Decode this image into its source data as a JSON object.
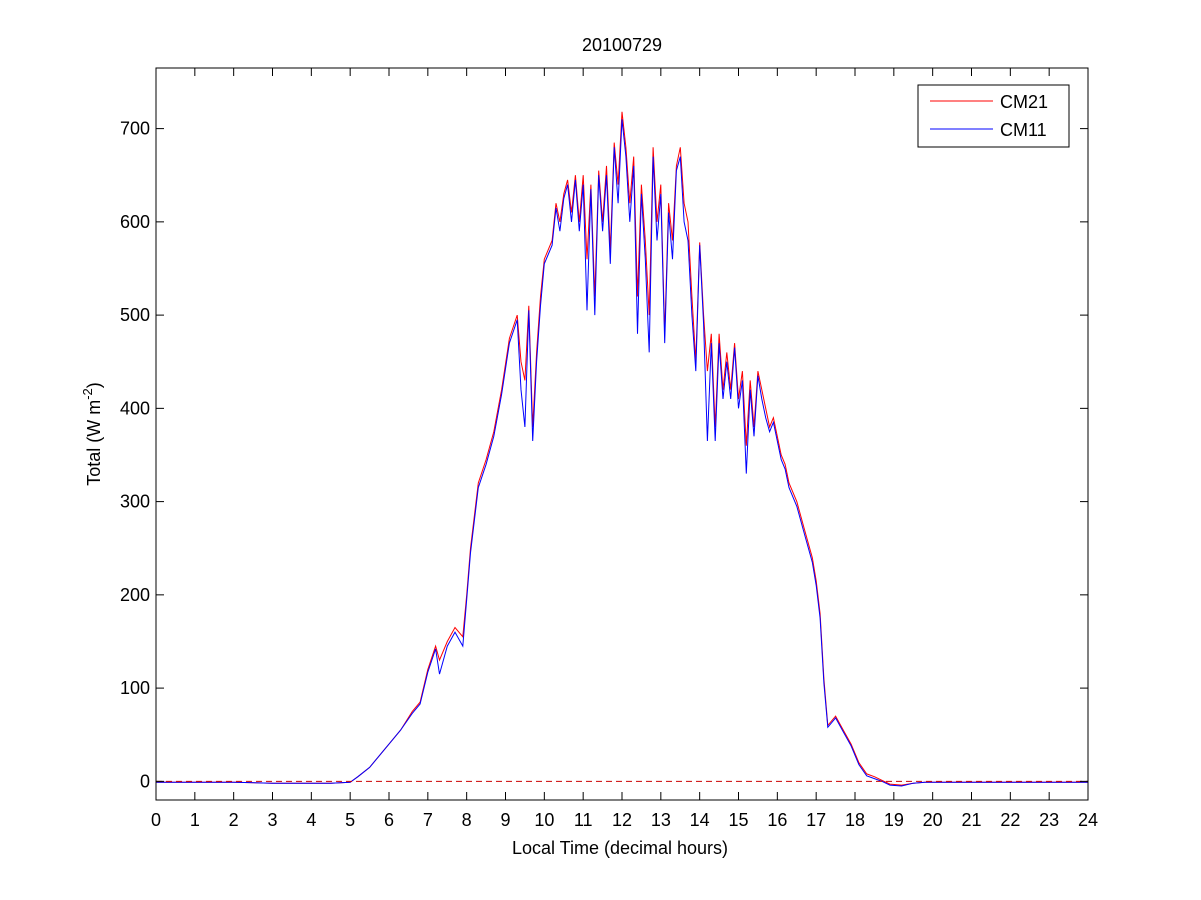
{
  "chart_data": {
    "type": "line",
    "title": "20100729",
    "xlabel": "Local Time (decimal hours)",
    "ylabel": "Total (W m",
    "ylabel_sup": "-2",
    "ylabel_close": ")",
    "xlim": [
      0,
      24
    ],
    "ylim": [
      -20,
      765
    ],
    "xticks": [
      0,
      1,
      2,
      3,
      4,
      5,
      6,
      7,
      8,
      9,
      10,
      11,
      12,
      13,
      14,
      15,
      16,
      17,
      18,
      19,
      20,
      21,
      22,
      23,
      24
    ],
    "xtick_labels": [
      "0",
      "1",
      "2",
      "3",
      "4",
      "5",
      "6",
      "7",
      "8",
      "9",
      "10",
      "11",
      "12",
      "13",
      "14",
      "15",
      "16",
      "17",
      "18",
      "19",
      "20",
      "21",
      "22",
      "23",
      "24"
    ],
    "yticks": [
      0,
      100,
      200,
      300,
      400,
      500,
      600,
      700
    ],
    "ytick_labels": [
      "0",
      "100",
      "200",
      "300",
      "400",
      "500",
      "600",
      "700"
    ],
    "grid": false,
    "legend_position": "top-right",
    "reference_line": {
      "y": 0,
      "color": "#cc0000",
      "style": "dashed"
    },
    "series": [
      {
        "name": "CM21",
        "color": "#ff0000",
        "x": [
          0,
          1,
          2,
          3,
          4,
          4.5,
          5,
          5.2,
          5.5,
          5.8,
          6,
          6.3,
          6.6,
          6.8,
          7,
          7.2,
          7.3,
          7.5,
          7.7,
          7.9,
          8,
          8.1,
          8.3,
          8.5,
          8.7,
          8.9,
          9.1,
          9.3,
          9.4,
          9.5,
          9.6,
          9.7,
          9.8,
          9.9,
          10,
          10.1,
          10.2,
          10.3,
          10.4,
          10.5,
          10.6,
          10.7,
          10.8,
          10.9,
          11,
          11.1,
          11.2,
          11.3,
          11.4,
          11.5,
          11.6,
          11.7,
          11.8,
          11.9,
          12,
          12.1,
          12.2,
          12.3,
          12.4,
          12.5,
          12.6,
          12.7,
          12.8,
          12.9,
          13,
          13.1,
          13.2,
          13.3,
          13.4,
          13.5,
          13.6,
          13.7,
          13.8,
          13.9,
          14,
          14.1,
          14.2,
          14.3,
          14.4,
          14.5,
          14.6,
          14.7,
          14.8,
          14.9,
          15,
          15.1,
          15.2,
          15.3,
          15.4,
          15.5,
          15.6,
          15.7,
          15.8,
          15.9,
          16,
          16.1,
          16.2,
          16.3,
          16.5,
          16.7,
          16.9,
          17,
          17.1,
          17.2,
          17.3,
          17.5,
          17.7,
          17.9,
          18.1,
          18.3,
          18.5,
          18.7,
          18.9,
          19.2,
          19.5,
          19.8,
          20,
          21,
          22,
          23,
          24
        ],
        "y": [
          -1,
          -1,
          -1,
          -2,
          -2,
          -2,
          -1,
          5,
          15,
          30,
          40,
          55,
          75,
          85,
          120,
          145,
          130,
          150,
          165,
          155,
          200,
          250,
          320,
          345,
          375,
          420,
          475,
          500,
          450,
          430,
          510,
          380,
          460,
          520,
          560,
          570,
          580,
          620,
          600,
          630,
          645,
          610,
          650,
          600,
          650,
          560,
          640,
          520,
          655,
          600,
          660,
          570,
          685,
          640,
          718,
          680,
          620,
          670,
          520,
          640,
          580,
          500,
          680,
          600,
          640,
          480,
          620,
          580,
          660,
          680,
          620,
          600,
          520,
          450,
          578,
          500,
          440,
          480,
          380,
          480,
          420,
          460,
          420,
          470,
          410,
          440,
          360,
          430,
          380,
          440,
          420,
          400,
          380,
          390,
          370,
          350,
          340,
          320,
          300,
          270,
          240,
          215,
          180,
          110,
          60,
          70,
          55,
          40,
          20,
          8,
          5,
          1,
          -3,
          -4,
          -2,
          -1,
          -1,
          -1,
          -1,
          -1,
          -1
        ]
      },
      {
        "name": "CM11",
        "color": "#0000ff",
        "x": [
          0,
          1,
          2,
          3,
          4,
          4.5,
          5,
          5.2,
          5.5,
          5.8,
          6,
          6.3,
          6.6,
          6.8,
          7,
          7.2,
          7.3,
          7.5,
          7.7,
          7.9,
          8,
          8.1,
          8.3,
          8.5,
          8.7,
          8.9,
          9.1,
          9.3,
          9.4,
          9.5,
          9.6,
          9.7,
          9.8,
          9.9,
          10,
          10.1,
          10.2,
          10.3,
          10.4,
          10.5,
          10.6,
          10.7,
          10.8,
          10.9,
          11,
          11.1,
          11.2,
          11.3,
          11.4,
          11.5,
          11.6,
          11.7,
          11.8,
          11.9,
          12,
          12.1,
          12.2,
          12.3,
          12.4,
          12.5,
          12.6,
          12.7,
          12.8,
          12.9,
          13,
          13.1,
          13.2,
          13.3,
          13.4,
          13.5,
          13.6,
          13.7,
          13.8,
          13.9,
          14,
          14.1,
          14.2,
          14.3,
          14.4,
          14.5,
          14.6,
          14.7,
          14.8,
          14.9,
          15,
          15.1,
          15.2,
          15.3,
          15.4,
          15.5,
          15.6,
          15.7,
          15.8,
          15.9,
          16,
          16.1,
          16.2,
          16.3,
          16.5,
          16.7,
          16.9,
          17,
          17.1,
          17.2,
          17.3,
          17.5,
          17.7,
          17.9,
          18.1,
          18.3,
          18.5,
          18.7,
          18.9,
          19.2,
          19.5,
          19.8,
          20,
          21,
          22,
          23,
          24
        ],
        "y": [
          -1,
          -1,
          -1,
          -2,
          -2,
          -2,
          -1,
          5,
          15,
          30,
          40,
          55,
          73,
          83,
          117,
          142,
          115,
          145,
          160,
          145,
          195,
          245,
          315,
          340,
          370,
          415,
          470,
          495,
          420,
          380,
          505,
          365,
          450,
          510,
          555,
          565,
          575,
          615,
          590,
          625,
          640,
          600,
          645,
          590,
          640,
          505,
          635,
          500,
          650,
          590,
          650,
          555,
          680,
          620,
          710,
          670,
          600,
          660,
          480,
          630,
          560,
          460,
          670,
          580,
          630,
          470,
          610,
          560,
          655,
          670,
          600,
          580,
          500,
          440,
          575,
          490,
          365,
          470,
          365,
          470,
          410,
          450,
          410,
          465,
          400,
          430,
          330,
          420,
          370,
          435,
          410,
          390,
          375,
          385,
          365,
          345,
          335,
          315,
          295,
          265,
          235,
          210,
          175,
          105,
          58,
          68,
          53,
          38,
          18,
          6,
          3,
          0,
          -4,
          -5,
          -2,
          -1,
          -1,
          -1,
          -1,
          -1,
          -1
        ]
      }
    ]
  }
}
